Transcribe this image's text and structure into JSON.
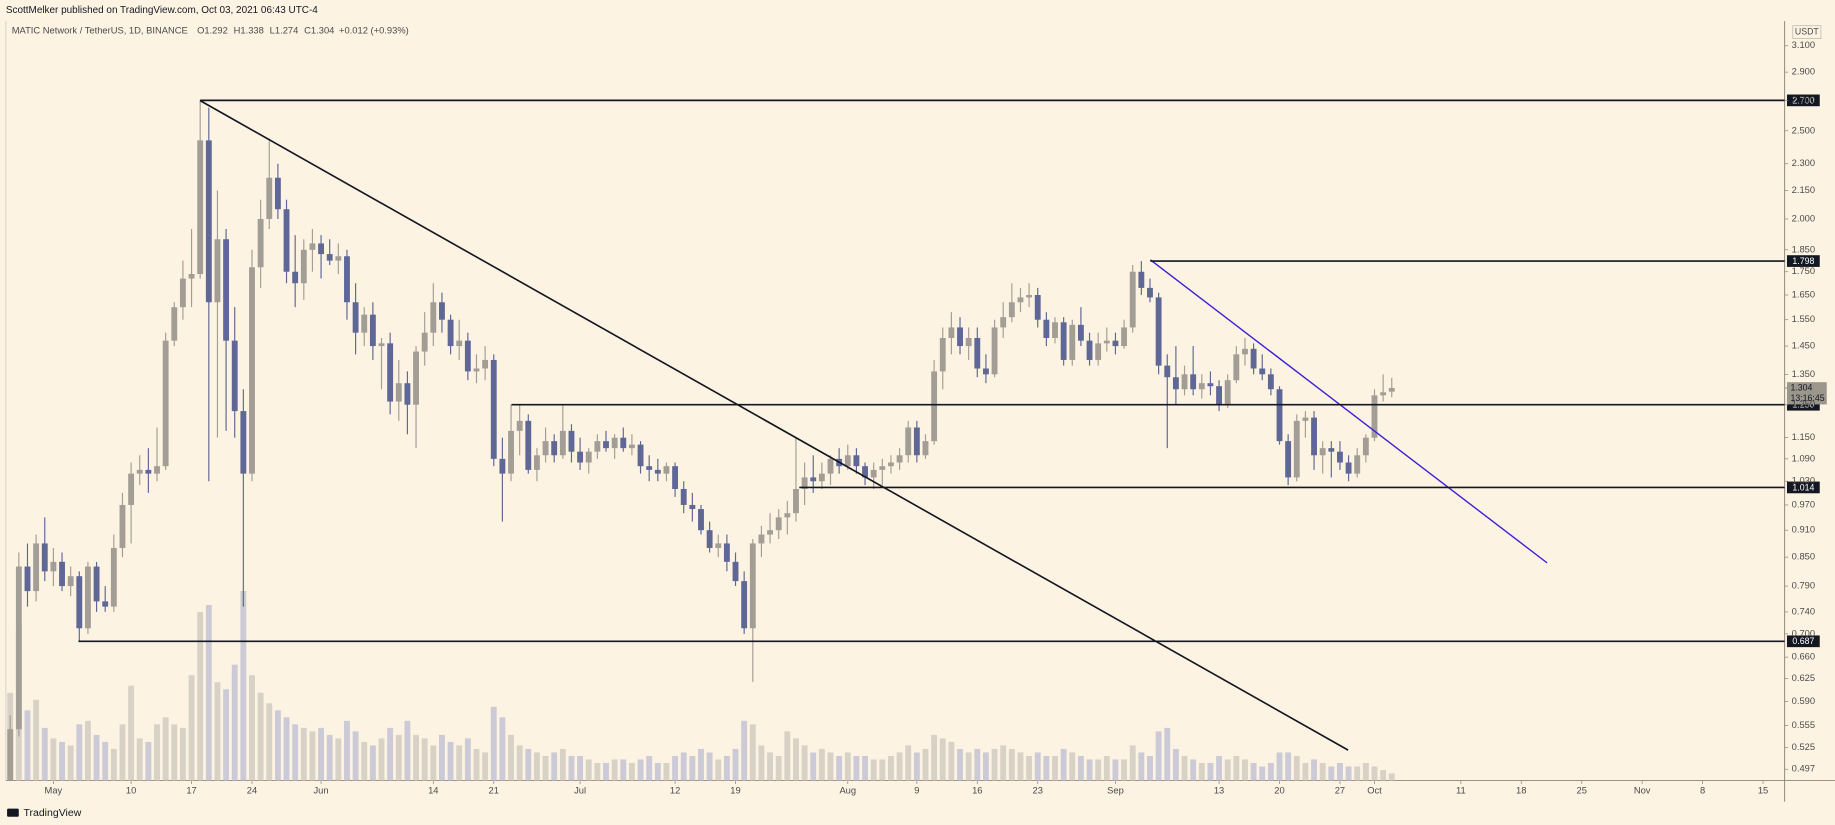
{
  "header": "ScottMelker published on TradingView.com, Oct 03, 2021 06:43 UTC-4",
  "footer": "TradingView",
  "chart_data": {
    "type": "candlestick",
    "symbol": "MATIC Network / TetherUS, 1D, BINANCE",
    "legend_labels": [
      "O",
      "H",
      "L",
      "C"
    ],
    "change": "+0.012 (+0.93%)",
    "currency": "USDT",
    "countdown": "13:16:45",
    "log_scale": true,
    "up_color": "#a39e95",
    "down_color": "#5f6797",
    "volume_up_color": "#d8d1c6",
    "volume_down_color": "#cbcad6",
    "level_color": "#131722",
    "ylim": [
      0.483,
      3.3
    ],
    "vlim": [
      0,
      1000
    ],
    "xlim": [
      -0.5,
      205.5
    ],
    "yticks": [
      {
        "value": 3.1,
        "label": "3.100"
      },
      {
        "value": 2.9,
        "label": "2.900"
      },
      {
        "value": 2.7,
        "label": "2.700"
      },
      {
        "value": 2.5,
        "label": "2.500"
      },
      {
        "value": 2.3,
        "label": "2.300"
      },
      {
        "value": 2.15,
        "label": "2.150"
      },
      {
        "value": 2.0,
        "label": "2.000"
      },
      {
        "value": 1.85,
        "label": "1.850"
      },
      {
        "value": 1.75,
        "label": "1.750"
      },
      {
        "value": 1.65,
        "label": "1.650"
      },
      {
        "value": 1.55,
        "label": "1.550"
      },
      {
        "value": 1.45,
        "label": "1.450"
      },
      {
        "value": 1.35,
        "label": "1.350"
      },
      {
        "value": 1.25,
        "label": "1.250"
      },
      {
        "value": 1.15,
        "label": "1.150"
      },
      {
        "value": 1.09,
        "label": "1.090"
      },
      {
        "value": 1.03,
        "label": "1.030"
      },
      {
        "value": 0.97,
        "label": "0.970"
      },
      {
        "value": 0.91,
        "label": "0.910"
      },
      {
        "value": 0.85,
        "label": "0.850"
      },
      {
        "value": 0.79,
        "label": "0.790"
      },
      {
        "value": 0.74,
        "label": "0.740"
      },
      {
        "value": 0.7,
        "label": "0.700"
      },
      {
        "value": 0.66,
        "label": "0.660"
      },
      {
        "value": 0.625,
        "label": "0.625"
      },
      {
        "value": 0.59,
        "label": "0.590"
      },
      {
        "value": 0.555,
        "label": "0.555"
      },
      {
        "value": 0.525,
        "label": "0.525"
      },
      {
        "value": 0.497,
        "label": "0.497"
      }
    ],
    "xticks": [
      {
        "value": 5,
        "label": "May"
      },
      {
        "value": 14,
        "label": "10"
      },
      {
        "value": 21,
        "label": "17"
      },
      {
        "value": 28,
        "label": "24"
      },
      {
        "value": 36,
        "label": "Jun"
      },
      {
        "value": 49,
        "label": "14"
      },
      {
        "value": 56,
        "label": "21"
      },
      {
        "value": 66,
        "label": "Jul"
      },
      {
        "value": 77,
        "label": "12"
      },
      {
        "value": 84,
        "label": "19"
      },
      {
        "value": 97,
        "label": "Aug"
      },
      {
        "value": 105,
        "label": "9"
      },
      {
        "value": 112,
        "label": "16"
      },
      {
        "value": 119,
        "label": "23"
      },
      {
        "value": 128,
        "label": "Sep"
      },
      {
        "value": 140,
        "label": "13"
      },
      {
        "value": 147,
        "label": "20"
      },
      {
        "value": 154,
        "label": "27"
      },
      {
        "value": 158,
        "label": "Oct"
      },
      {
        "value": 168,
        "label": "11"
      },
      {
        "value": 175,
        "label": "18"
      },
      {
        "value": 182,
        "label": "25"
      },
      {
        "value": 189,
        "label": "Nov"
      },
      {
        "value": 196,
        "label": "8"
      },
      {
        "value": 203,
        "label": "15"
      }
    ],
    "levels": [
      {
        "value": 2.7,
        "label": "2.700"
      },
      {
        "value": 1.798,
        "label": "1.798"
      },
      {
        "value": 1.25,
        "label": "1.250"
      },
      {
        "value": 1.014,
        "label": "1.014"
      },
      {
        "value": 0.687,
        "label": "0.687"
      }
    ],
    "open": [
      0.47,
      0.55,
      0.83,
      0.78,
      0.88,
      0.82,
      0.84,
      0.79,
      0.81,
      0.71,
      0.83,
      0.76,
      0.75,
      0.87,
      0.97,
      1.05,
      1.06,
      1.05,
      1.07,
      1.47,
      1.6,
      1.72,
      1.74,
      2.44,
      1.62,
      1.9,
      1.47,
      1.23,
      1.05,
      1.77,
      2.0,
      2.22,
      2.05,
      1.75,
      1.7,
      1.85,
      1.88,
      1.83,
      1.8,
      1.82,
      1.62,
      1.5,
      1.57,
      1.45,
      1.46,
      1.26,
      1.32,
      1.25,
      1.43,
      1.5,
      1.62,
      1.55,
      1.45,
      1.47,
      1.36,
      1.37,
      1.4,
      1.09,
      1.05,
      1.17,
      1.2,
      1.06,
      1.1,
      1.14,
      1.1,
      1.17,
      1.11,
      1.08,
      1.11,
      1.14,
      1.12,
      1.15,
      1.12,
      1.13,
      1.07,
      1.06,
      1.05,
      1.07,
      1.01,
      0.97,
      0.96,
      0.91,
      0.87,
      0.88,
      0.84,
      0.8,
      0.71,
      0.88,
      0.9,
      0.91,
      0.94,
      0.95,
      1.01,
      1.04,
      1.03,
      1.05,
      1.09,
      1.07,
      1.1,
      1.07,
      1.04,
      1.06,
      1.07,
      1.08,
      1.1,
      1.18,
      1.1,
      1.14,
      1.36,
      1.48,
      1.52,
      1.45,
      1.48,
      1.37,
      1.35,
      1.52,
      1.56,
      1.62,
      1.64,
      1.65,
      1.55,
      1.48,
      1.54,
      1.4,
      1.53,
      1.47,
      1.4,
      1.46,
      1.47,
      1.45,
      1.52,
      1.75,
      1.68,
      1.64,
      1.38,
      1.34,
      1.3,
      1.35,
      1.3,
      1.32,
      1.31,
      1.25,
      1.33,
      1.42,
      1.44,
      1.37,
      1.35,
      1.3,
      1.14,
      1.04,
      1.2,
      1.21,
      1.1,
      1.12,
      1.11,
      1.08,
      1.05,
      1.1,
      1.15,
      1.28,
      1.292
    ],
    "high": [
      0.57,
      0.86,
      0.88,
      0.9,
      0.94,
      0.87,
      0.86,
      0.83,
      0.82,
      0.84,
      0.84,
      0.79,
      0.9,
      1.0,
      1.08,
      1.1,
      1.12,
      1.18,
      1.5,
      1.62,
      1.8,
      1.95,
      2.7,
      2.65,
      2.15,
      1.95,
      1.6,
      1.3,
      1.85,
      2.1,
      2.45,
      2.3,
      2.1,
      1.92,
      1.9,
      1.95,
      1.92,
      1.9,
      1.88,
      1.85,
      1.7,
      1.6,
      1.62,
      1.48,
      1.5,
      1.4,
      1.36,
      1.45,
      1.58,
      1.7,
      1.66,
      1.57,
      1.55,
      1.5,
      1.42,
      1.45,
      1.42,
      1.15,
      1.25,
      1.25,
      1.22,
      1.12,
      1.18,
      1.16,
      1.25,
      1.19,
      1.15,
      1.12,
      1.16,
      1.17,
      1.16,
      1.18,
      1.16,
      1.14,
      1.1,
      1.09,
      1.08,
      1.08,
      1.03,
      1.0,
      0.97,
      0.93,
      0.9,
      0.9,
      0.86,
      0.82,
      0.89,
      0.92,
      0.95,
      0.96,
      0.98,
      1.15,
      1.08,
      1.1,
      1.08,
      1.1,
      1.12,
      1.13,
      1.12,
      1.08,
      1.08,
      1.09,
      1.1,
      1.12,
      1.2,
      1.2,
      1.16,
      1.4,
      1.52,
      1.58,
      1.56,
      1.52,
      1.52,
      1.42,
      1.55,
      1.62,
      1.7,
      1.68,
      1.7,
      1.68,
      1.58,
      1.56,
      1.56,
      1.55,
      1.6,
      1.5,
      1.5,
      1.52,
      1.5,
      1.55,
      1.78,
      1.798,
      1.72,
      1.66,
      1.42,
      1.45,
      1.38,
      1.45,
      1.35,
      1.36,
      1.33,
      1.35,
      1.45,
      1.48,
      1.46,
      1.42,
      1.37,
      1.31,
      1.16,
      1.22,
      1.23,
      1.23,
      1.14,
      1.14,
      1.14,
      1.1,
      1.12,
      1.16,
      1.3,
      1.35,
      1.338
    ],
    "low": [
      0.46,
      0.54,
      0.75,
      0.76,
      0.8,
      0.79,
      0.78,
      0.77,
      0.687,
      0.7,
      0.74,
      0.74,
      0.74,
      0.85,
      0.88,
      1.02,
      1.0,
      1.03,
      1.06,
      1.45,
      1.55,
      1.6,
      1.72,
      1.03,
      1.15,
      1.17,
      1.15,
      0.75,
      1.03,
      1.68,
      1.95,
      2.0,
      1.7,
      1.6,
      1.63,
      1.75,
      1.72,
      1.78,
      1.74,
      1.55,
      1.42,
      1.45,
      1.4,
      1.3,
      1.22,
      1.2,
      1.16,
      1.12,
      1.38,
      1.45,
      1.5,
      1.42,
      1.4,
      1.33,
      1.32,
      1.33,
      1.07,
      0.93,
      1.03,
      1.1,
      1.05,
      1.03,
      1.08,
      1.08,
      1.09,
      1.08,
      1.06,
      1.05,
      1.09,
      1.11,
      1.09,
      1.11,
      1.1,
      1.05,
      1.03,
      1.03,
      1.03,
      0.99,
      0.95,
      0.93,
      0.9,
      0.86,
      0.85,
      0.82,
      0.79,
      0.7,
      0.62,
      0.85,
      0.88,
      0.89,
      0.9,
      0.93,
      0.97,
      1.0,
      1.01,
      1.02,
      1.05,
      1.06,
      1.05,
      1.02,
      1.01,
      1.02,
      1.05,
      1.06,
      1.08,
      1.08,
      1.09,
      1.13,
      1.3,
      1.42,
      1.42,
      1.4,
      1.34,
      1.32,
      1.34,
      1.48,
      1.54,
      1.58,
      1.6,
      1.52,
      1.45,
      1.46,
      1.38,
      1.38,
      1.45,
      1.38,
      1.38,
      1.43,
      1.42,
      1.44,
      1.5,
      1.65,
      1.62,
      1.35,
      1.12,
      1.25,
      1.28,
      1.28,
      1.27,
      1.28,
      1.23,
      1.24,
      1.32,
      1.38,
      1.35,
      1.33,
      1.28,
      1.13,
      1.02,
      1.03,
      1.15,
      1.06,
      1.05,
      1.04,
      1.06,
      1.03,
      1.04,
      1.08,
      1.14,
      1.26,
      1.274
    ],
    "close": [
      0.55,
      0.83,
      0.78,
      0.88,
      0.82,
      0.84,
      0.79,
      0.81,
      0.71,
      0.83,
      0.76,
      0.75,
      0.87,
      0.97,
      1.05,
      1.06,
      1.05,
      1.07,
      1.47,
      1.6,
      1.72,
      1.74,
      2.44,
      1.62,
      1.9,
      1.47,
      1.23,
      1.05,
      1.77,
      2.0,
      2.22,
      2.05,
      1.75,
      1.7,
      1.85,
      1.88,
      1.83,
      1.8,
      1.82,
      1.62,
      1.5,
      1.57,
      1.45,
      1.46,
      1.26,
      1.32,
      1.25,
      1.43,
      1.5,
      1.62,
      1.55,
      1.45,
      1.47,
      1.36,
      1.37,
      1.4,
      1.09,
      1.05,
      1.17,
      1.2,
      1.06,
      1.1,
      1.14,
      1.1,
      1.17,
      1.11,
      1.08,
      1.11,
      1.14,
      1.12,
      1.15,
      1.12,
      1.13,
      1.07,
      1.06,
      1.05,
      1.07,
      1.01,
      0.97,
      0.96,
      0.91,
      0.87,
      0.88,
      0.84,
      0.8,
      0.71,
      0.88,
      0.9,
      0.91,
      0.94,
      0.95,
      1.01,
      1.04,
      1.03,
      1.05,
      1.09,
      1.07,
      1.1,
      1.07,
      1.04,
      1.06,
      1.07,
      1.08,
      1.1,
      1.18,
      1.1,
      1.14,
      1.36,
      1.48,
      1.52,
      1.45,
      1.48,
      1.37,
      1.35,
      1.52,
      1.56,
      1.62,
      1.64,
      1.65,
      1.55,
      1.48,
      1.54,
      1.4,
      1.53,
      1.47,
      1.4,
      1.46,
      1.47,
      1.45,
      1.52,
      1.75,
      1.68,
      1.64,
      1.38,
      1.34,
      1.3,
      1.35,
      1.3,
      1.32,
      1.31,
      1.25,
      1.33,
      1.42,
      1.44,
      1.37,
      1.35,
      1.3,
      1.14,
      1.04,
      1.2,
      1.21,
      1.1,
      1.12,
      1.11,
      1.08,
      1.05,
      1.1,
      1.15,
      1.28,
      1.29,
      1.304
    ],
    "volume": [
      250,
      440,
      200,
      230,
      150,
      120,
      110,
      100,
      160,
      170,
      130,
      110,
      90,
      160,
      270,
      120,
      110,
      160,
      180,
      160,
      150,
      300,
      480,
      500,
      280,
      260,
      330,
      540,
      300,
      250,
      220,
      200,
      180,
      160,
      150,
      140,
      150,
      130,
      120,
      170,
      140,
      110,
      100,
      120,
      150,
      130,
      170,
      130,
      120,
      100,
      130,
      110,
      100,
      120,
      90,
      80,
      210,
      180,
      130,
      100,
      90,
      80,
      70,
      80,
      90,
      70,
      70,
      60,
      50,
      50,
      60,
      60,
      50,
      60,
      70,
      50,
      50,
      70,
      80,
      70,
      90,
      80,
      60,
      70,
      90,
      170,
      160,
      100,
      80,
      70,
      140,
      120,
      100,
      80,
      90,
      80,
      70,
      80,
      70,
      70,
      60,
      60,
      70,
      80,
      100,
      80,
      90,
      130,
      120,
      110,
      90,
      80,
      90,
      80,
      90,
      100,
      90,
      80,
      70,
      80,
      70,
      70,
      90,
      80,
      70,
      60,
      60,
      70,
      60,
      60,
      100,
      80,
      70,
      140,
      150,
      90,
      70,
      60,
      50,
      50,
      70,
      60,
      70,
      60,
      50,
      40,
      50,
      80,
      80,
      70,
      50,
      60,
      50,
      40,
      50,
      40,
      40,
      50,
      40,
      30,
      20
    ]
  }
}
